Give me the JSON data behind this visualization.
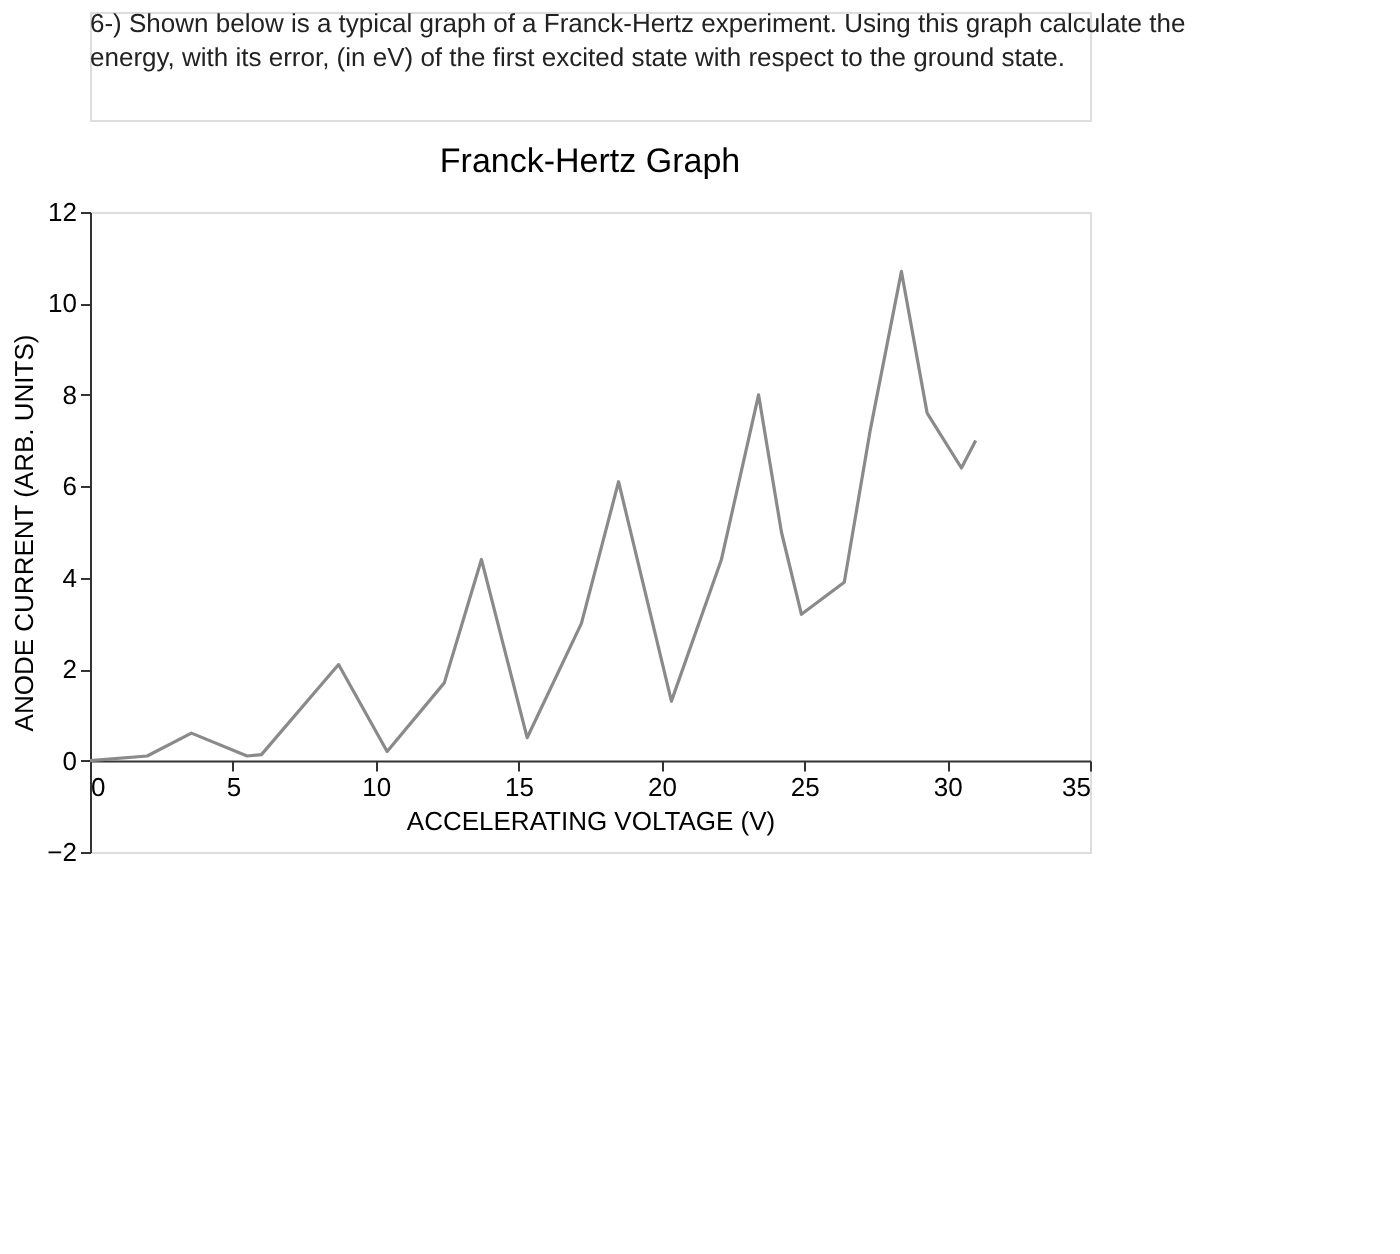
{
  "chart_data": {
    "type": "line",
    "title": "Franck-Hertz Graph",
    "xlabel": "ACCELERATING VOLTAGE (V)",
    "ylabel": "ANODE CURRENT (ARB. UNITS)",
    "annotations": [
      "6-) Shown below is a typical graph of a Franck-Hertz experiment. Using this graph calculate the energy, with its error, (in eV) of the first excited state with respect to the ground state."
    ],
    "x": [
      0,
      2.0,
      3.55,
      5.5,
      6.0,
      8.7,
      10.4,
      12.4,
      13.7,
      15.3,
      17.2,
      18.5,
      20.35,
      22.1,
      23.4,
      24.2,
      24.9,
      26.4,
      27.3,
      28.4,
      29.3,
      30.5,
      31.0
    ],
    "series": [
      {
        "color": "#8a8a8a",
        "values": [
          0,
          0.1,
          0.6,
          0.1,
          0.13,
          2.1,
          0.2,
          1.7,
          4.4,
          0.5,
          3.0,
          6.1,
          1.3,
          4.4,
          8.0,
          5.0,
          3.2,
          3.9,
          7.2,
          10.7,
          7.6,
          6.4,
          7.0
        ]
      }
    ],
    "xlim": [
      0,
      35
    ],
    "xticks": [
      0,
      5,
      10,
      15,
      20,
      25,
      30,
      35
    ],
    "ylim": [
      -2,
      12
    ],
    "yticks": [
      -2,
      0,
      2,
      4,
      6,
      8,
      10,
      12
    ],
    "grid": false,
    "marker": "none",
    "line_style": "solid"
  }
}
